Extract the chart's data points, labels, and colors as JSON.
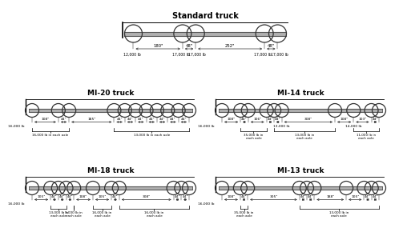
{
  "std_axle_spacings": [
    180,
    48,
    252,
    48
  ],
  "std_weights": [
    "12,000 lb",
    "17,000 lb",
    "17,000 lb",
    "17,000 lb",
    "17,000 lb"
  ],
  "std_spacing_labels": [
    "180\"",
    "48\"",
    "252\"",
    "48\""
  ],
  "mi20_spacings": [
    108,
    44,
    185,
    44,
    44,
    44,
    44,
    44,
    44,
    44
  ],
  "mi20_sp_labels": [
    "108\"",
    "44\"",
    "185\"",
    "44\"",
    "44\"",
    "44\"",
    "44\"",
    "44\"",
    "44\"",
    "44\""
  ],
  "mi20_brace1": [
    0,
    2,
    "16,000 lb in each axle"
  ],
  "mi20_brace2": [
    3,
    10,
    "13,000 lb in each axle"
  ],
  "mi20_front_wt": "16,000 lb",
  "mi14_spacings": [
    108,
    44,
    106,
    44,
    44,
    308,
    108,
    103,
    44
  ],
  "mi14_sp_labels": [
    "108\"",
    "44\"",
    "106\"",
    "44\"",
    "44\"",
    "308\"",
    "108\"",
    "103\"",
    "44\""
  ],
  "mi14_front_wt": "16,000 lb",
  "mi14_brace1": [
    1,
    3,
    "35,000 lb in\neach axle"
  ],
  "mi14_wt5": "13,000 lb",
  "mi14_wt7": "14,000 lb",
  "mi14_brace2": [
    4,
    6,
    "13,000 lb in\neach axle"
  ],
  "mi14_brace3": [
    7,
    9,
    "11,000 lb in\neach axle"
  ],
  "mi18_spacings": [
    105,
    44,
    44,
    44,
    108,
    105,
    44,
    308,
    44,
    44
  ],
  "mi18_sp_labels": [
    "105\"",
    "44\"",
    "44\"",
    "44\"",
    "108\"",
    "105\"",
    "44\"",
    "308\"",
    "44\"",
    "44\""
  ],
  "mi18_front_wt": "16,000 lb",
  "mi18_brace1": [
    1,
    3,
    "13,000 lb in\neach axle"
  ],
  "mi18_brace2": [
    4,
    4,
    "9,000 lb in\neach axle"
  ],
  "mi18_brace3": [
    5,
    6,
    "16,000 lb in\neach axle"
  ],
  "mi18_brace4": [
    7,
    10,
    "16,000 lb in\neach axle"
  ],
  "mi13_spacings": [
    108,
    44,
    305,
    44,
    44,
    188,
    105,
    44,
    44
  ],
  "mi13_sp_labels": [
    "108\"",
    "44\"",
    "305\"",
    "44\"",
    "44\"",
    "188\"",
    "105\"",
    "44\"",
    "44\""
  ],
  "mi13_front_wt": "16,000 lb",
  "mi13_brace1": [
    1,
    2,
    "35,000 lb in\neach axle"
  ],
  "mi13_brace2": [
    3,
    9,
    "13,000 lb in\neach axle"
  ],
  "beam_color": "#b0b0b0",
  "beam_edge": "#333333"
}
